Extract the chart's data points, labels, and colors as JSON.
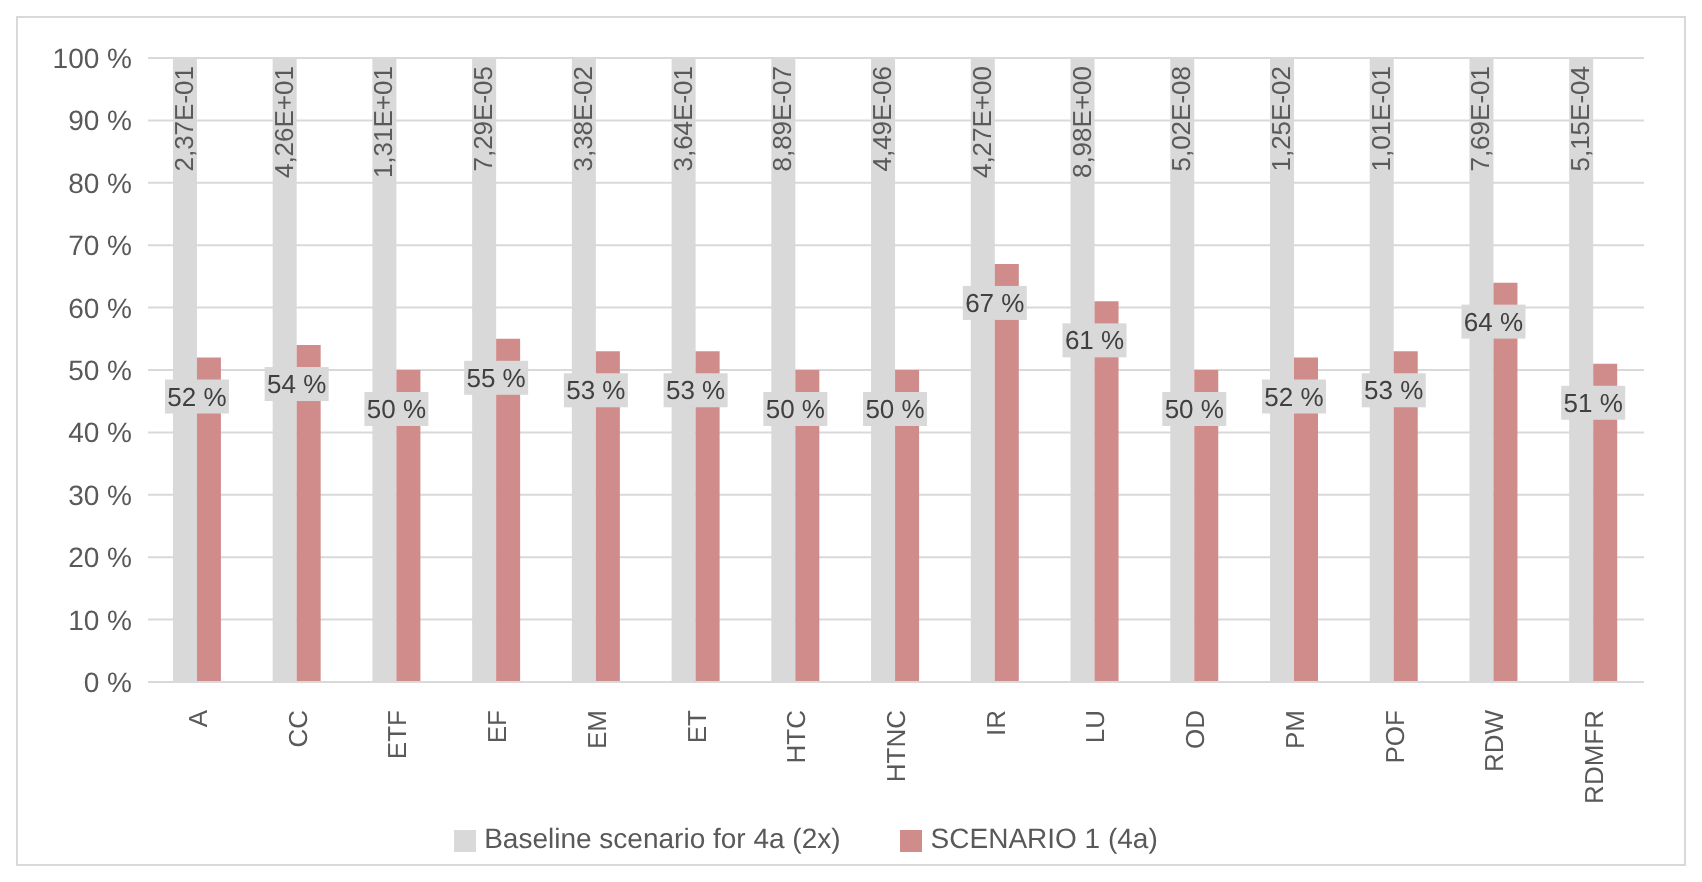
{
  "chart_data": {
    "type": "bar",
    "categories": [
      "A",
      "CC",
      "ETF",
      "EF",
      "EM",
      "ET",
      "HTC",
      "HTNC",
      "IR",
      "LU",
      "OD",
      "PM",
      "POF",
      "RDW",
      "RDMFR"
    ],
    "series": [
      {
        "name": "Baseline scenario for 4a (2x)",
        "color": "#d9d9d9",
        "values": [
          100,
          100,
          100,
          100,
          100,
          100,
          100,
          100,
          100,
          100,
          100,
          100,
          100,
          100,
          100
        ]
      },
      {
        "name": "SCENARIO 1 (4a)",
        "color": "#d08b8b",
        "values": [
          52,
          54,
          50,
          55,
          53,
          53,
          50,
          50,
          67,
          61,
          50,
          52,
          53,
          64,
          51
        ],
        "value_labels": [
          "52 %",
          "54 %",
          "50 %",
          "55 %",
          "53 %",
          "53 %",
          "50 %",
          "50 %",
          "67 %",
          "61 %",
          "50 %",
          "52 %",
          "53 %",
          "64 %",
          "51 %"
        ]
      }
    ],
    "annotations": [
      {
        "text": "2,37E-01",
        "x": "A",
        "y": 100
      },
      {
        "text": "4,26E+01",
        "x": "CC",
        "y": 100
      },
      {
        "text": "1,31E+01",
        "x": "ETF",
        "y": 100
      },
      {
        "text": "7,29E-05",
        "x": "EF",
        "y": 100
      },
      {
        "text": "3,38E-02",
        "x": "EM",
        "y": 100
      },
      {
        "text": "3,64E-01",
        "x": "ET",
        "y": 100
      },
      {
        "text": "8,89E-07",
        "x": "HTC",
        "y": 100
      },
      {
        "text": "4,49E-06",
        "x": "HTNC",
        "y": 100
      },
      {
        "text": "4,27E+00",
        "x": "IR",
        "y": 100
      },
      {
        "text": "8,98E+00",
        "x": "LU",
        "y": 100
      },
      {
        "text": "5,02E-08",
        "x": "OD",
        "y": 100
      },
      {
        "text": "1,25E-02",
        "x": "PM",
        "y": 100
      },
      {
        "text": "1,01E-01",
        "x": "POF",
        "y": 100
      },
      {
        "text": "7,69E-01",
        "x": "RDW",
        "y": 100
      },
      {
        "text": "5,15E-04",
        "x": "RDMFR",
        "y": 100
      }
    ],
    "ylim": [
      0,
      100
    ],
    "yticks": [
      {
        "value": 0,
        "label": "0 %"
      },
      {
        "value": 10,
        "label": "10 %"
      },
      {
        "value": 20,
        "label": "20 %"
      },
      {
        "value": 30,
        "label": "30 %"
      },
      {
        "value": 40,
        "label": "40 %"
      },
      {
        "value": 50,
        "label": "50 %"
      },
      {
        "value": 60,
        "label": "60 %"
      },
      {
        "value": 70,
        "label": "70 %"
      },
      {
        "value": 80,
        "label": "80 %"
      },
      {
        "value": 90,
        "label": "90 %"
      },
      {
        "value": 100,
        "label": "100 %"
      }
    ],
    "grid": "y",
    "legend": "bottom"
  }
}
